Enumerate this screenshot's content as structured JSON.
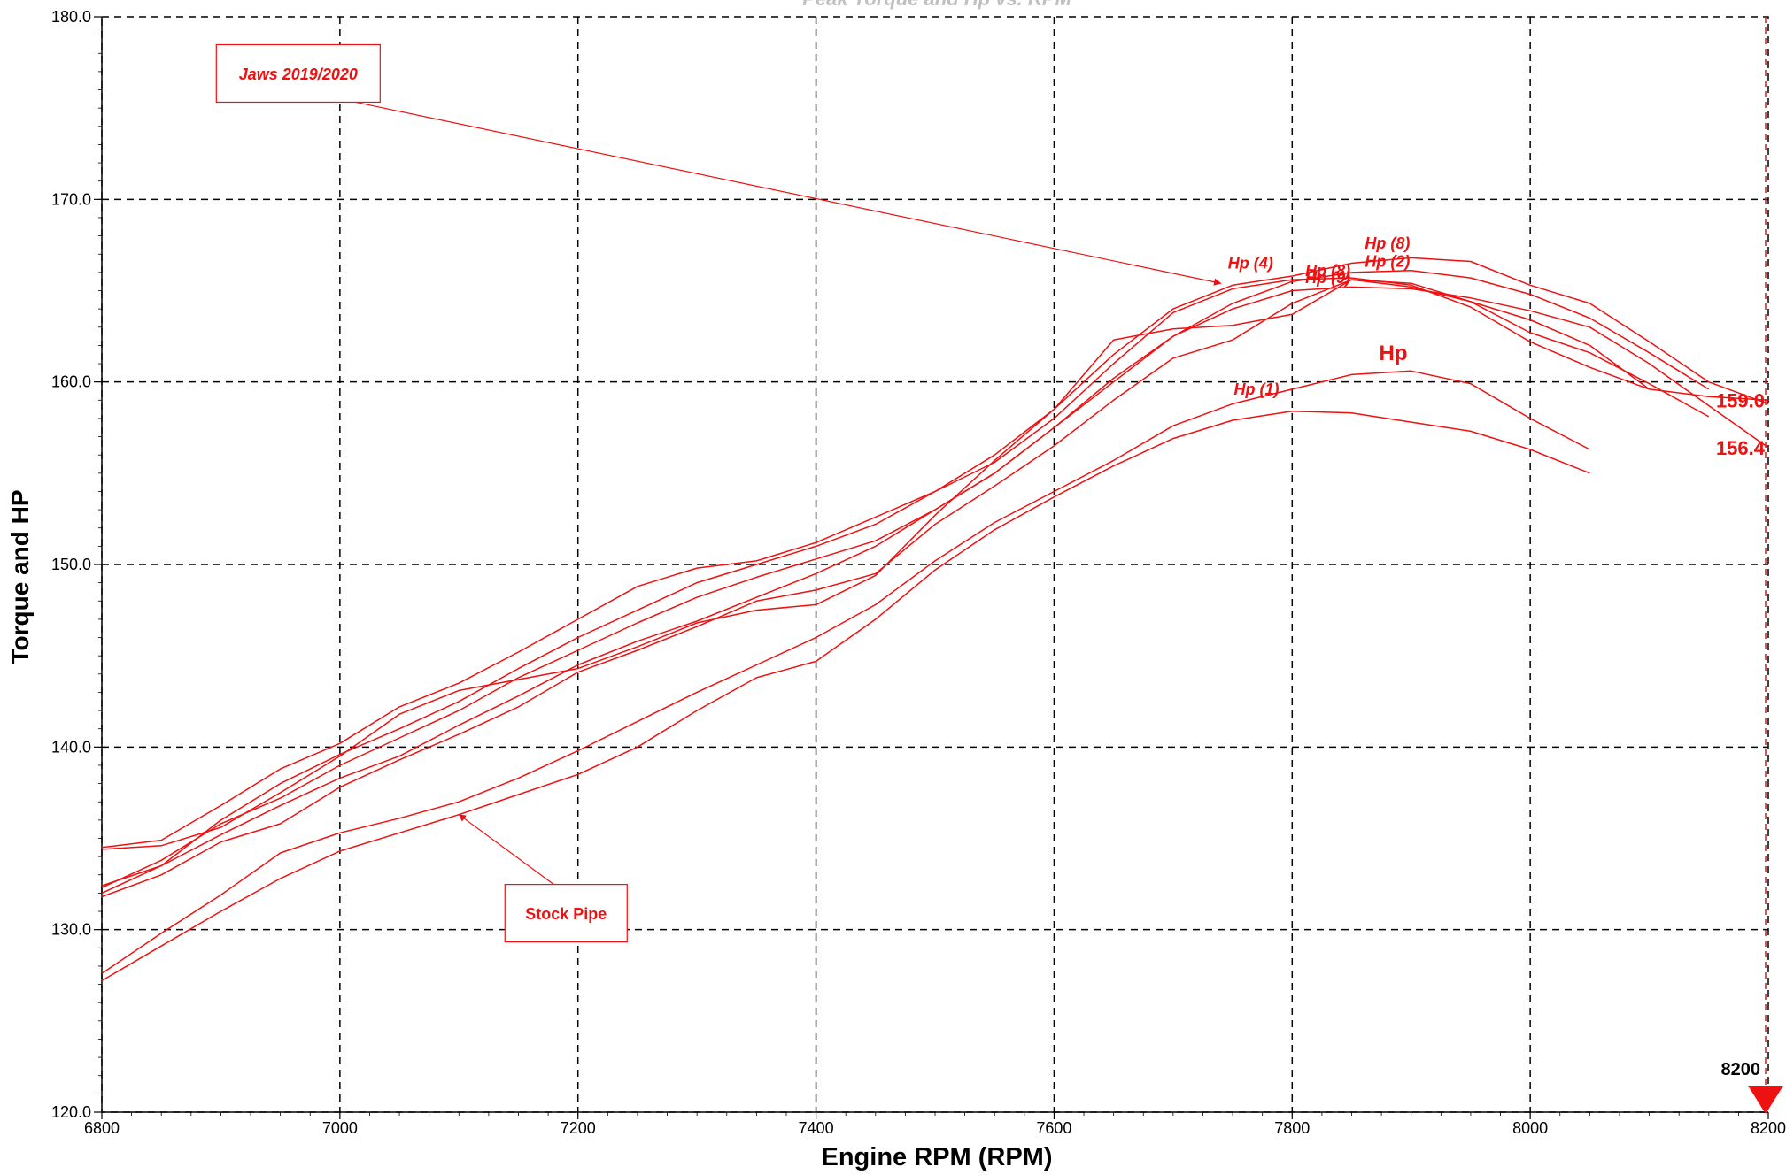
{
  "chart_data": {
    "type": "line",
    "title": "Peak Torque  and Hp  vs. RPM",
    "xlabel": "Engine RPM (RPM)",
    "ylabel": "Torque and HP",
    "xlim": [
      6800,
      8200
    ],
    "ylim": [
      120,
      180
    ],
    "x_ticks": [
      "6800",
      "7000",
      "7200",
      "7400",
      "7600",
      "7800",
      "8000",
      "8200"
    ],
    "y_ticks": [
      "120.0",
      "130.0",
      "140.0",
      "150.0",
      "160.0",
      "170.0",
      "180.0"
    ],
    "grid": true,
    "line_color": "#ee1111",
    "series": [
      {
        "x": [
          6800,
          6850,
          6900,
          6950,
          7000,
          7050,
          7100,
          7150,
          7200,
          7250,
          7300,
          7350,
          7400,
          7450,
          7500,
          7550,
          7600,
          7650,
          7700,
          7750,
          7800,
          7850,
          7900,
          7950,
          8000,
          8050,
          8100,
          8150,
          8200
        ],
        "values": [
          134.5,
          134.9,
          136.8,
          138.8,
          140.2,
          142.2,
          143.5,
          145.2,
          147.0,
          148.8,
          149.8,
          150.2,
          151.2,
          152.6,
          154.0,
          155.6,
          158.0,
          161.0,
          163.8,
          165.1,
          165.6,
          165.7,
          165.3,
          164.1,
          162.2,
          160.8,
          159.6,
          159.2,
          159.0
        ]
      },
      {
        "x": [
          6800,
          6850,
          6900,
          6950,
          7000,
          7050,
          7100,
          7150,
          7200,
          7250,
          7300,
          7350,
          7400,
          7450,
          7500,
          7550,
          7600,
          7650,
          7700,
          7750,
          7800,
          7850,
          7900,
          7950,
          8000,
          8050,
          8100,
          8150,
          8200
        ],
        "values": [
          132.0,
          133.5,
          136.0,
          138.0,
          139.6,
          141.0,
          142.5,
          144.3,
          146.0,
          147.5,
          149.0,
          150.0,
          151.0,
          152.2,
          154.0,
          156.0,
          158.5,
          161.5,
          164.0,
          165.3,
          165.8,
          166.5,
          166.8,
          166.6,
          165.3,
          164.3,
          162.2,
          160.0,
          158.8
        ]
      },
      {
        "x": [
          6800,
          6850,
          6900,
          6950,
          7000,
          7050,
          7100,
          7150,
          7200,
          7250,
          7300,
          7350,
          7400,
          7450,
          7500,
          7550,
          7600,
          7650,
          7700,
          7750,
          7800,
          7850,
          7900,
          7950,
          8000,
          8050,
          8100,
          8150
        ],
        "values": [
          132.3,
          133.8,
          135.8,
          137.2,
          139.0,
          140.5,
          142.0,
          143.8,
          145.3,
          146.8,
          148.2,
          149.3,
          150.3,
          151.3,
          153.0,
          155.0,
          157.5,
          160.0,
          162.5,
          164.3,
          165.5,
          166.0,
          166.1,
          165.7,
          164.8,
          163.5,
          161.6,
          159.6
        ]
      },
      {
        "x": [
          6800,
          6850,
          6900,
          6950,
          7000,
          7050,
          7100,
          7150,
          7200,
          7250,
          7300,
          7350,
          7400,
          7450,
          7500,
          7550,
          7600,
          7650,
          7700,
          7750,
          7800,
          7850,
          7900,
          7950,
          8000,
          8050,
          8100,
          8150,
          8200
        ],
        "values": [
          132.4,
          133.5,
          135.2,
          136.8,
          138.3,
          139.5,
          141.2,
          142.8,
          144.5,
          145.8,
          146.9,
          148.2,
          149.5,
          151.0,
          153.0,
          155.0,
          157.5,
          160.2,
          162.5,
          164.0,
          165.0,
          165.2,
          165.1,
          164.6,
          163.9,
          163.0,
          161.0,
          158.7,
          156.4
        ]
      },
      {
        "x": [
          6800,
          6850,
          6900,
          6950,
          7000,
          7050,
          7100,
          7150,
          7200,
          7250,
          7300,
          7350,
          7400,
          7450,
          7500,
          7550,
          7600,
          7650,
          7700,
          7750,
          7800,
          7850,
          7900,
          7950,
          8000,
          8050,
          8100
        ],
        "values": [
          134.4,
          134.6,
          135.6,
          137.5,
          139.5,
          141.8,
          143.1,
          143.7,
          144.3,
          145.5,
          146.8,
          147.5,
          147.8,
          149.4,
          152.7,
          155.7,
          158.5,
          162.3,
          162.9,
          163.1,
          163.7,
          165.6,
          165.4,
          164.4,
          163.4,
          162.0,
          159.6
        ]
      },
      {
        "x": [
          6800,
          6850,
          6900,
          6950,
          7000,
          7050,
          7100,
          7150,
          7200,
          7250,
          7300,
          7350,
          7400,
          7450,
          7500,
          7550,
          7600,
          7650,
          7700,
          7750,
          7800,
          7850,
          7900,
          7950,
          8000,
          8050,
          8100,
          8150
        ],
        "values": [
          131.8,
          133.0,
          134.8,
          135.8,
          137.8,
          139.3,
          140.7,
          142.2,
          144.1,
          145.3,
          146.6,
          148.0,
          148.6,
          149.5,
          152.2,
          154.3,
          156.5,
          159.0,
          161.3,
          162.3,
          164.3,
          165.6,
          165.2,
          164.4,
          162.7,
          161.6,
          159.9,
          158.1
        ]
      },
      {
        "x": [
          6800,
          6850,
          6900,
          6950,
          7000,
          7050,
          7100,
          7150,
          7200,
          7250,
          7300,
          7350,
          7400,
          7450,
          7500,
          7550,
          7600,
          7650,
          7700,
          7750,
          7800,
          7850,
          7900,
          7950,
          8000,
          8050
        ],
        "values": [
          127.6,
          129.8,
          131.9,
          134.2,
          135.3,
          136.1,
          137.0,
          138.3,
          139.8,
          141.4,
          143.0,
          144.5,
          146.0,
          147.8,
          150.2,
          152.3,
          154.0,
          155.7,
          157.6,
          158.8,
          159.6,
          160.4,
          160.6,
          159.9,
          158.0,
          156.3
        ]
      },
      {
        "x": [
          6800,
          6850,
          6900,
          6950,
          7000,
          7050,
          7100,
          7150,
          7200,
          7250,
          7300,
          7350,
          7400,
          7450,
          7500,
          7550,
          7600,
          7650,
          7700,
          7750,
          7800,
          7850,
          7900,
          7950,
          8000,
          8050
        ],
        "values": [
          127.2,
          129.1,
          131.0,
          132.8,
          134.3,
          135.3,
          136.3,
          137.4,
          138.5,
          140.0,
          142.0,
          143.8,
          144.7,
          147.0,
          149.7,
          151.9,
          153.7,
          155.4,
          156.9,
          157.9,
          158.4,
          158.3,
          157.8,
          157.3,
          156.3,
          155.0
        ]
      }
    ],
    "point_labels": [
      {
        "text": "Hp (4)",
        "x": 7765,
        "y": 166.2
      },
      {
        "text": "Hp (8)",
        "x": 7830,
        "y": 165.8
      },
      {
        "text": "Hp (9)",
        "x": 7830,
        "y": 165.4
      },
      {
        "text": "Hp (8)",
        "x": 7880,
        "y": 167.3
      },
      {
        "text": "Hp (2)",
        "x": 7880,
        "y": 166.3
      },
      {
        "text": "Hp (1)",
        "x": 7770,
        "y": 159.3
      },
      {
        "text": "Hp",
        "x": 7885,
        "y": 161.2
      }
    ],
    "end_values": [
      {
        "text": "159.0",
        "y": 159.0
      },
      {
        "text": "156.4",
        "y": 156.4
      }
    ],
    "annotations": [
      {
        "text": "Jaws 2019/2020",
        "x": 6965,
        "y": 176.9,
        "arrow_to": {
          "x": 7740,
          "y": 165.4
        }
      },
      {
        "text": "Stock Pipe",
        "x": 7190,
        "y": 130.9,
        "arrow_to": {
          "x": 7100,
          "y": 136.3
        }
      }
    ],
    "cursor": {
      "x": 8200,
      "label": "8200"
    }
  }
}
